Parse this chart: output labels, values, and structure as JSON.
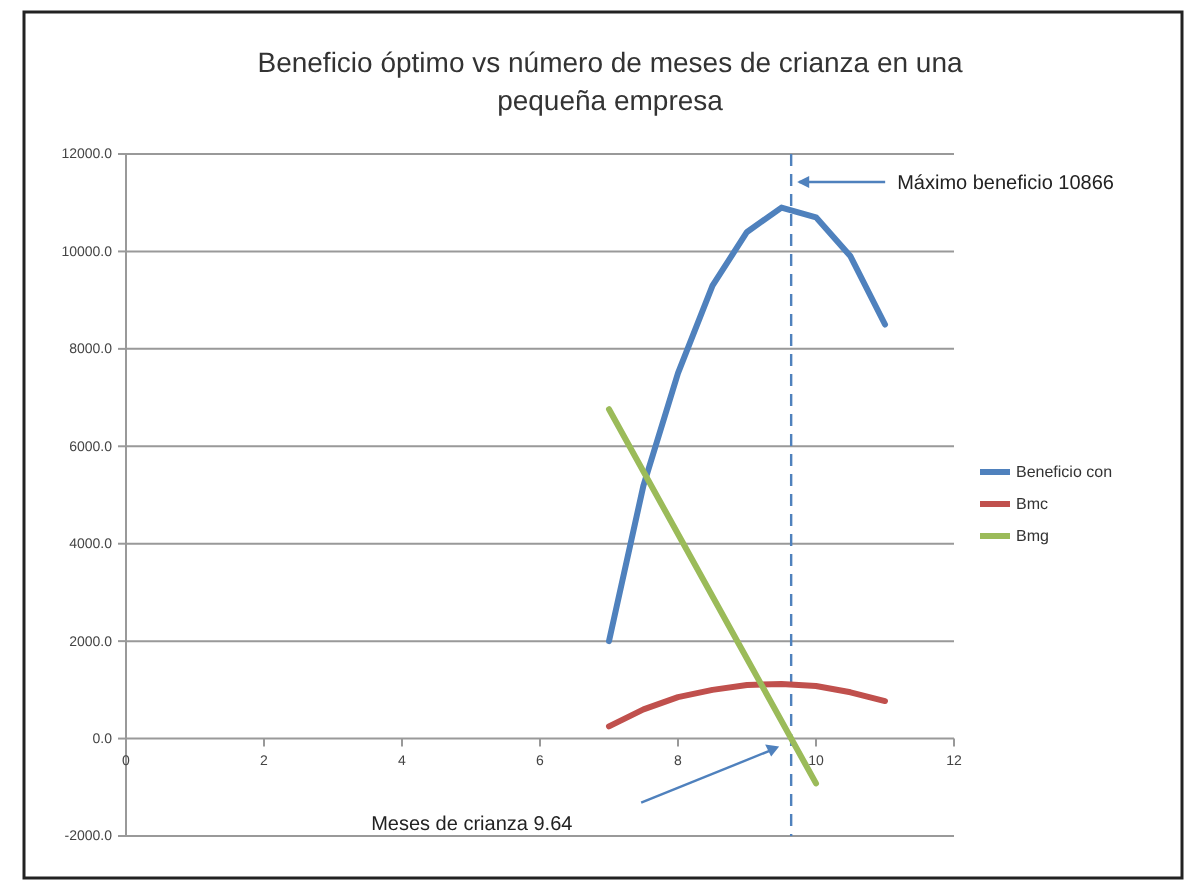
{
  "chart_data": {
    "type": "line",
    "title": "Beneficio óptimo vs número de meses de crianza en una pequeña empresa",
    "xlim": [
      0,
      12
    ],
    "xticks": [
      0,
      2,
      4,
      6,
      8,
      10,
      12
    ],
    "ylim": [
      -2000,
      12000
    ],
    "yticks": [
      {
        "value": -2000,
        "label": "-2000.0"
      },
      {
        "value": 0,
        "label": "0.0"
      },
      {
        "value": 2000,
        "label": "2000.0"
      },
      {
        "value": 4000,
        "label": "4000.0"
      },
      {
        "value": 6000,
        "label": "6000.0"
      },
      {
        "value": 8000,
        "label": "8000.0"
      },
      {
        "value": 10000,
        "label": "10000.0"
      },
      {
        "value": 12000,
        "label": "12000.0"
      }
    ],
    "grid": "y",
    "legend": "right",
    "marker": "none",
    "line_style": "solid",
    "series": [
      {
        "name": "Beneficio con",
        "color": "#4f81bd",
        "x": [
          7,
          7.5,
          8,
          8.5,
          9,
          9.5,
          10,
          10.5,
          11
        ],
        "values": [
          2000,
          5200,
          7500,
          9300,
          10400,
          10900,
          10700,
          9900,
          8500
        ]
      },
      {
        "name": "Bmc",
        "color": "#c0504d",
        "x": [
          7,
          7.5,
          8,
          8.5,
          9,
          9.5,
          10,
          10.5,
          11
        ],
        "values": [
          250,
          600,
          850,
          1000,
          1100,
          1120,
          1080,
          950,
          770
        ]
      },
      {
        "name": "Bmg",
        "color": "#9bbb59",
        "x": [
          7,
          8,
          9,
          10
        ],
        "values": [
          6760,
          4200,
          1640,
          -920
        ]
      }
    ],
    "ref_lines": [
      {
        "axis": "x",
        "value": 9.64,
        "color": "#4f81bd",
        "line_style": "dashed"
      }
    ],
    "annotations": [
      "Máximo beneficio  10866",
      "Meses  de crianza  9.64"
    ]
  }
}
